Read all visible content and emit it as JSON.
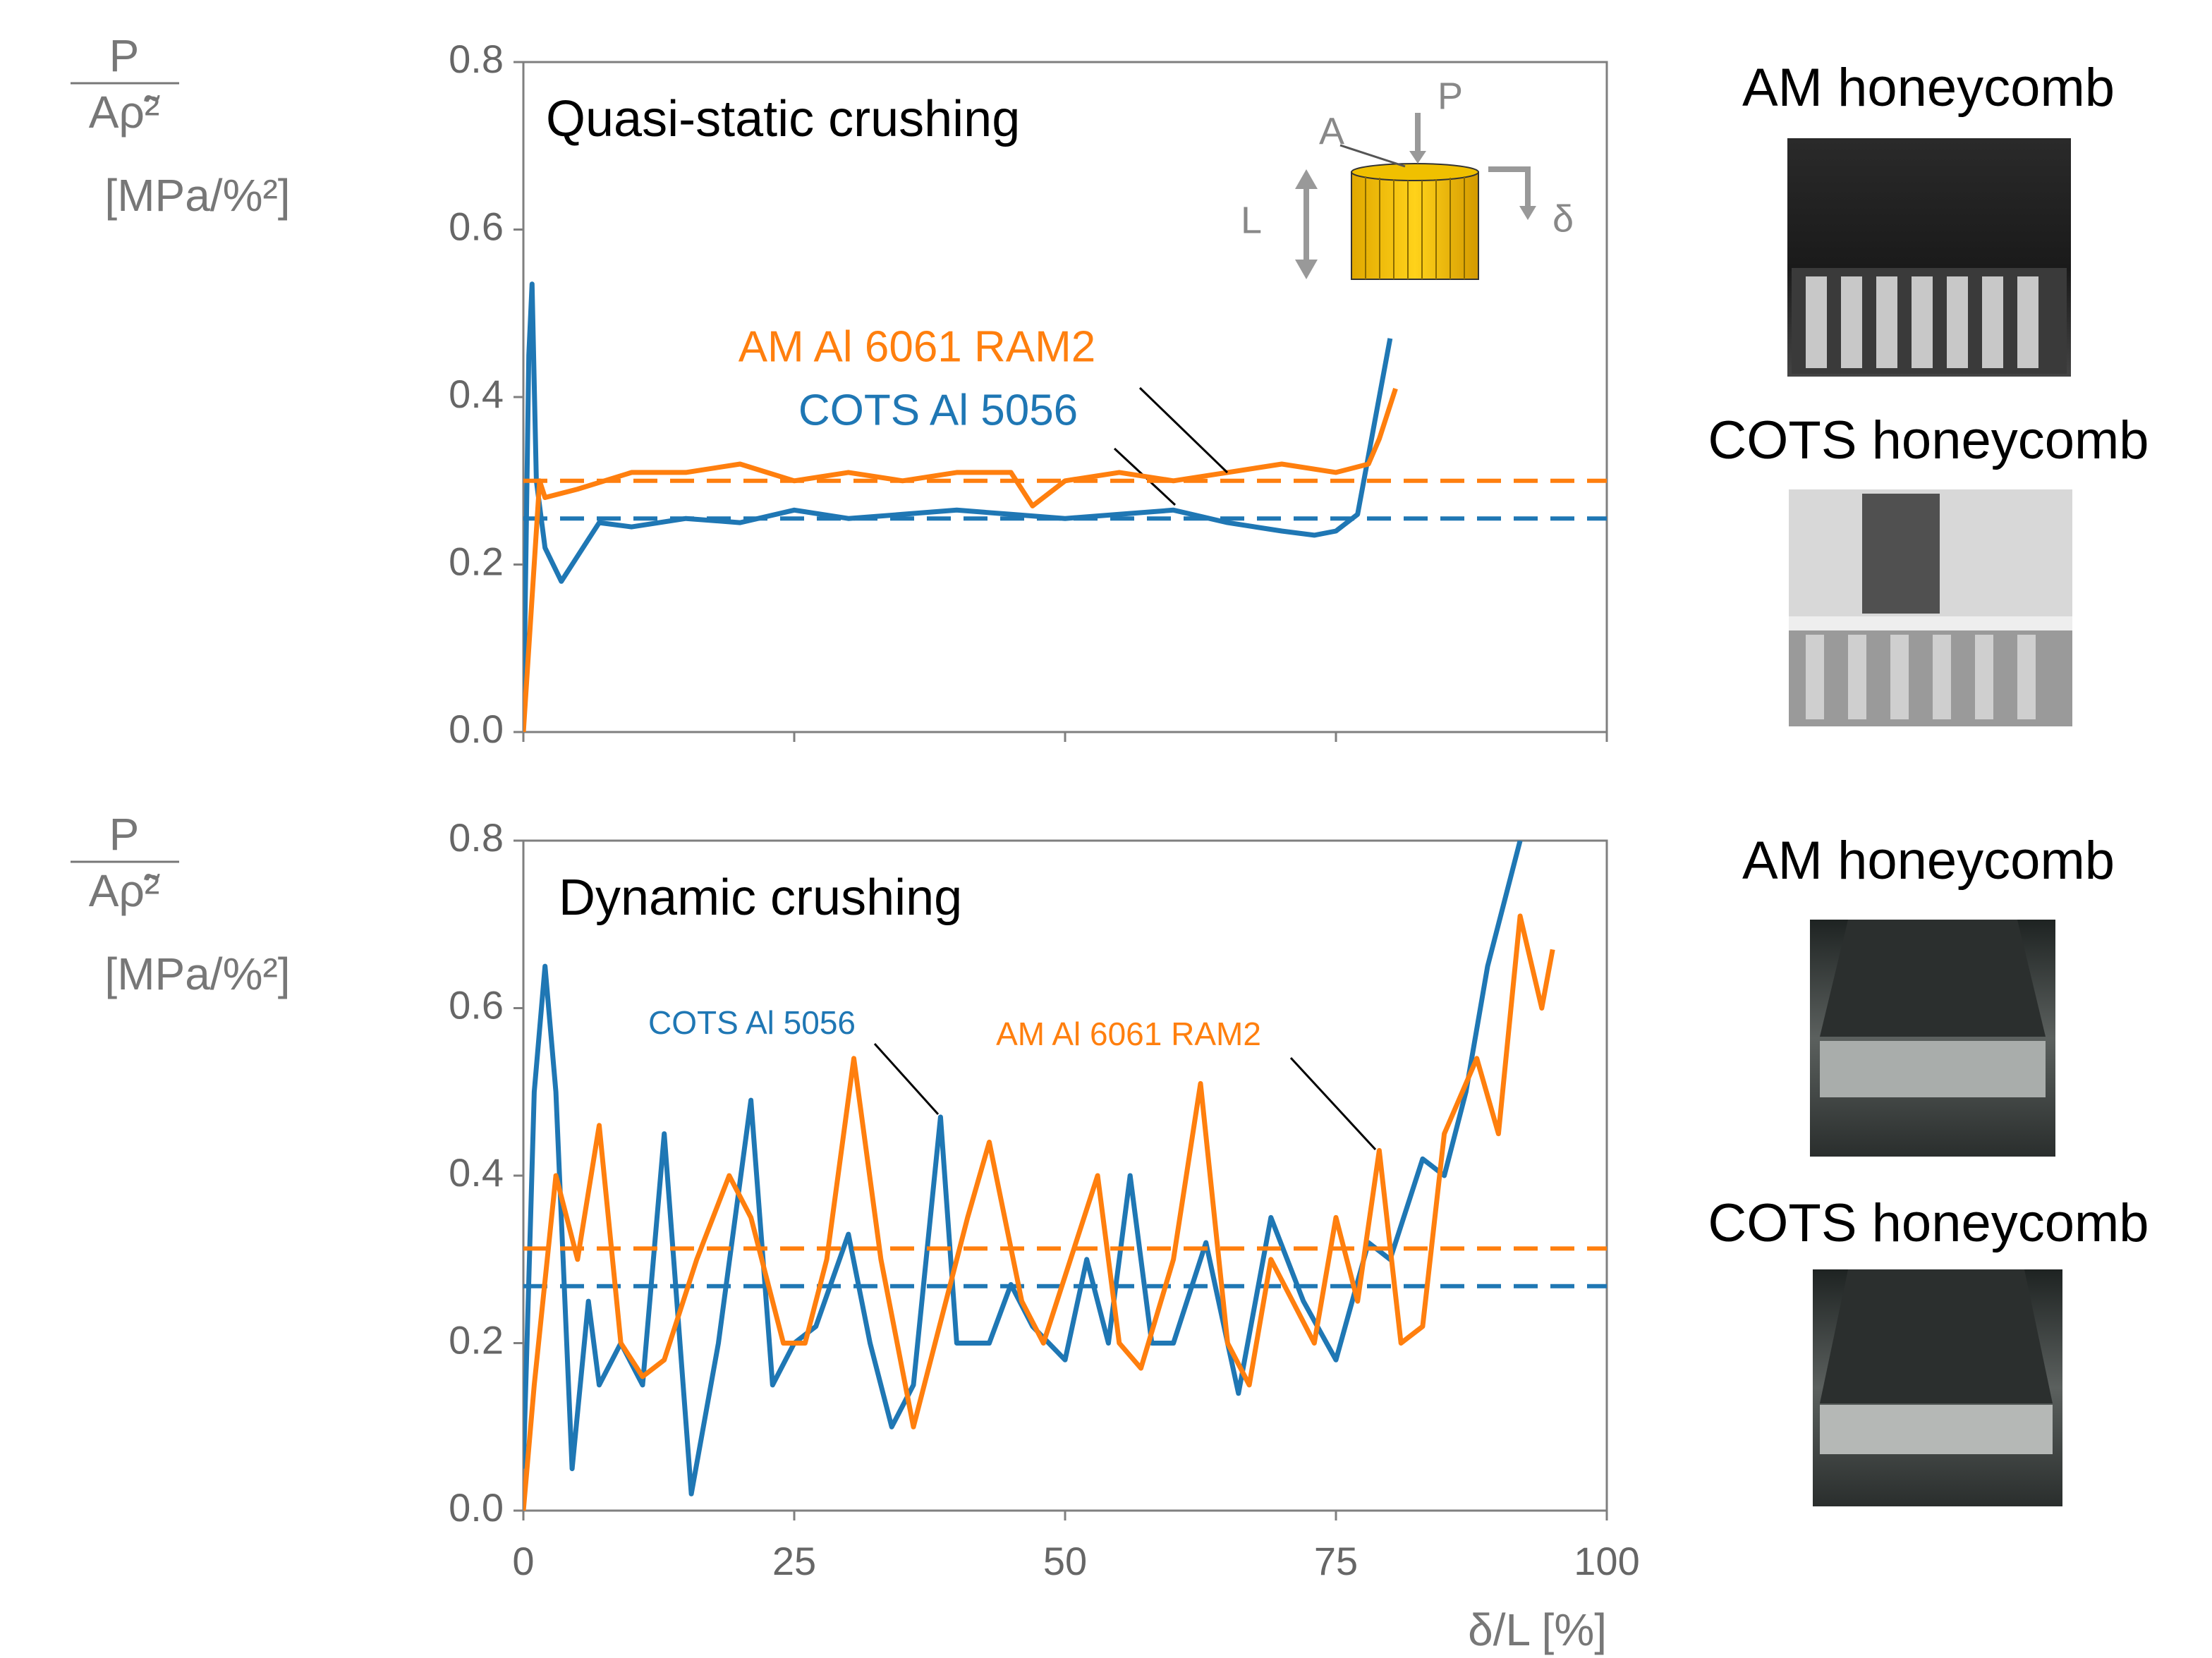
{
  "chart_data": [
    {
      "type": "line",
      "title": "Quasi-static crushing",
      "y_label": {
        "numerator": "P",
        "denominator": "Aρ̃²",
        "unit": "[MPa/%²]"
      },
      "xlim": [
        0,
        100
      ],
      "xticks": [
        0,
        25,
        50,
        75,
        100
      ],
      "xticklabels": false,
      "ylim": [
        0,
        0.8
      ],
      "yticks": [
        {
          "value": 0,
          "label": "0.0"
        },
        0.2,
        0.4,
        0.6,
        0.8
      ],
      "inset_labels": [
        "P",
        "A",
        "L",
        "δ"
      ],
      "series": [
        {
          "name": "COTS Al 5056",
          "color": "#1f77b4",
          "mean": 0.255,
          "x": [
            0,
            0.5,
            0.8,
            1.2,
            2,
            3.5,
            5,
            7,
            10,
            15,
            20,
            25,
            30,
            35,
            40,
            45,
            50,
            55,
            60,
            65,
            70,
            73,
            75,
            77,
            78,
            79,
            80
          ],
          "values": [
            0,
            0.45,
            0.535,
            0.3,
            0.22,
            0.18,
            0.21,
            0.25,
            0.245,
            0.255,
            0.25,
            0.265,
            0.255,
            0.26,
            0.265,
            0.26,
            0.255,
            0.26,
            0.265,
            0.25,
            0.24,
            0.235,
            0.24,
            0.26,
            0.33,
            0.4,
            0.47
          ]
        },
        {
          "name": "AM Al 6061 RAM2",
          "color": "#ff7f0e",
          "mean": 0.3,
          "x": [
            0,
            1.5,
            2,
            5,
            10,
            15,
            20,
            25,
            30,
            35,
            40,
            45,
            47,
            50,
            55,
            60,
            65,
            70,
            75,
            78,
            79,
            80.5
          ],
          "values": [
            0,
            0.3,
            0.28,
            0.29,
            0.31,
            0.31,
            0.32,
            0.3,
            0.31,
            0.3,
            0.31,
            0.31,
            0.27,
            0.3,
            0.31,
            0.3,
            0.31,
            0.32,
            0.31,
            0.32,
            0.35,
            0.41
          ]
        }
      ]
    },
    {
      "type": "line",
      "title": "Dynamic crushing",
      "y_label": {
        "numerator": "P",
        "denominator": "Aρ̃²",
        "unit": "[MPa/%²]"
      },
      "x_label": "δ/L [%]",
      "xlim": [
        0,
        100
      ],
      "xticks": [
        0,
        25,
        50,
        75,
        100
      ],
      "xticklabels": true,
      "ylim": [
        0,
        0.8
      ],
      "yticks": [
        {
          "value": 0,
          "label": "0.0"
        },
        0.2,
        0.4,
        0.6,
        0.8
      ],
      "series": [
        {
          "name": "COTS Al 5056",
          "color": "#1f77b4",
          "mean": 0.268,
          "x": [
            0,
            1,
            2,
            3,
            4.5,
            6,
            7,
            9,
            11,
            13,
            15.5,
            18,
            21,
            23,
            25,
            27,
            30,
            32,
            34,
            36,
            38.5,
            40,
            43,
            45,
            47,
            50,
            52,
            54,
            56,
            58,
            60,
            63,
            66,
            69,
            72,
            75,
            78,
            80,
            83,
            85,
            87,
            89,
            92
          ],
          "values": [
            0.05,
            0.5,
            0.65,
            0.5,
            0.05,
            0.25,
            0.15,
            0.2,
            0.15,
            0.45,
            0.02,
            0.2,
            0.49,
            0.15,
            0.2,
            0.22,
            0.33,
            0.2,
            0.1,
            0.15,
            0.47,
            0.2,
            0.2,
            0.27,
            0.22,
            0.18,
            0.3,
            0.2,
            0.4,
            0.2,
            0.2,
            0.32,
            0.14,
            0.35,
            0.25,
            0.18,
            0.32,
            0.3,
            0.42,
            0.4,
            0.5,
            0.65,
            0.8
          ]
        },
        {
          "name": "AM Al 6061 RAM2",
          "color": "#ff7f0e",
          "mean": 0.313,
          "x": [
            0,
            1,
            3,
            5,
            7,
            9,
            11,
            13,
            16,
            19,
            21,
            24,
            26,
            28,
            30.5,
            33,
            36,
            38,
            41,
            43,
            46,
            48,
            50,
            53,
            55,
            57,
            60,
            62.5,
            65,
            67,
            69,
            71,
            73,
            75,
            77,
            79,
            81,
            83,
            85,
            88,
            90,
            92,
            94,
            95
          ],
          "values": [
            0,
            0.15,
            0.4,
            0.3,
            0.46,
            0.2,
            0.16,
            0.18,
            0.3,
            0.4,
            0.35,
            0.2,
            0.2,
            0.3,
            0.54,
            0.3,
            0.1,
            0.2,
            0.35,
            0.44,
            0.25,
            0.2,
            0.28,
            0.4,
            0.2,
            0.17,
            0.3,
            0.51,
            0.2,
            0.15,
            0.3,
            0.25,
            0.2,
            0.35,
            0.25,
            0.43,
            0.2,
            0.22,
            0.45,
            0.54,
            0.45,
            0.71,
            0.6,
            0.67
          ]
        }
      ]
    }
  ],
  "photo_captions": [
    "AM honeycomb",
    "COTS honeycomb",
    "AM honeycomb",
    "COTS honeycomb"
  ]
}
